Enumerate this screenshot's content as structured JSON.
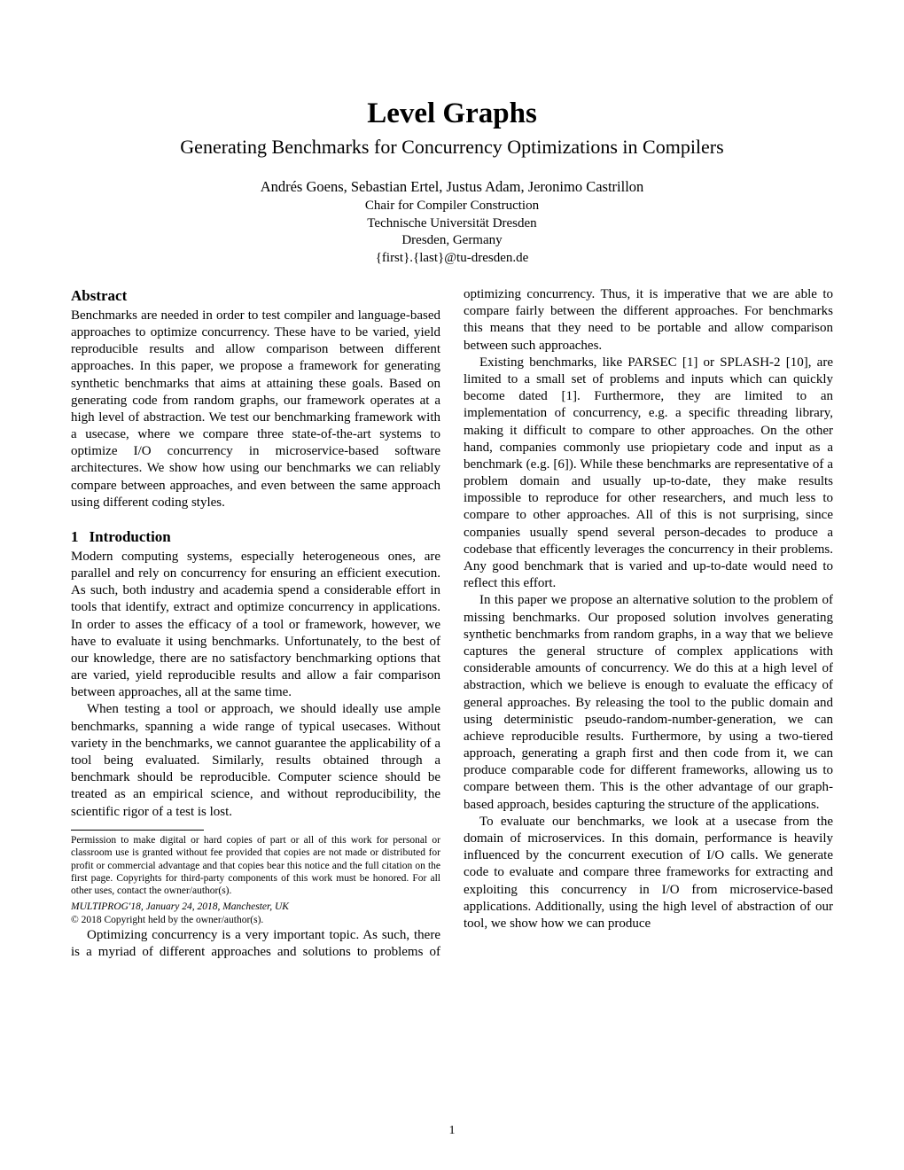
{
  "title": "Level Graphs",
  "subtitle": "Generating Benchmarks for Concurrency Optimizations in Compilers",
  "authors": "Andrés Goens, Sebastian Ertel, Justus Adam, Jeronimo Castrillon",
  "affiliation": {
    "chair": "Chair for Compiler Construction",
    "univ": "Technische Universität Dresden",
    "city": "Dresden, Germany",
    "email": "{first}.{last}@tu-dresden.de"
  },
  "abstract_heading": "Abstract",
  "abstract": "Benchmarks are needed in order to test compiler and language-based approaches to optimize concurrency. These have to be varied, yield reproducible results and allow comparison between different approaches. In this paper, we propose a framework for generating synthetic benchmarks that aims at attaining these goals. Based on generating code from random graphs, our framework operates at a high level of abstraction. We test our benchmarking framework with a usecase, where we compare three state-of-the-art systems to optimize I/O concurrency in microservice-based software architectures. We show how using our benchmarks we can reliably compare between approaches, and even between the same approach using different coding styles.",
  "section1_num": "1",
  "section1_title": "Introduction",
  "intro_p1": "Modern computing systems, especially heterogeneous ones, are parallel and rely on concurrency for ensuring an efficient execution. As such, both industry and academia spend a considerable effort in tools that identify, extract and optimize concurrency in applications. In order to asses the efficacy of a tool or framework, however, we have to evaluate it using benchmarks. Unfortunately, to the best of our knowledge, there are no satisfactory benchmarking options that are varied, yield reproducible results and allow a fair comparison between approaches, all at the same time.",
  "intro_p2": "When testing a tool or approach, we should ideally use ample benchmarks, spanning a wide range of typical usecases. Without variety in the benchmarks, we cannot guarantee the applicability of a tool being evaluated. Similarly, results obtained through a benchmark should be reproducible. Computer science should be treated as an empirical science, and without reproducibility, the scientific rigor of a test is lost.",
  "col2_p1": "Optimizing concurrency is a very important topic. As such, there is a myriad of different approaches and solutions to problems of optimizing concurrency. Thus, it is imperative that we are able to compare fairly between the different approaches. For benchmarks this means that they need to be portable and allow comparison between such approaches.",
  "col2_p2": "Existing benchmarks, like PARSEC [1] or SPLASH-2 [10], are limited to a small set of problems and inputs which can quickly become dated [1]. Furthermore, they are limited to an implementation of concurrency, e.g. a specific threading library, making it difficult to compare to other approaches. On the other hand, companies commonly use priopietary code and input as a benchmark (e.g. [6]). While these benchmarks are representative of a problem domain and usually up-to-date, they make results impossible to reproduce for other researchers, and much less to compare to other approaches. All of this is not surprising, since companies usually spend several person-decades to produce a codebase that efficently leverages the concurrency in their problems. Any good benchmark that is varied and up-to-date would need to reflect this effort.",
  "col2_p3": "In this paper we propose an alternative solution to the problem of missing benchmarks. Our proposed solution involves generating synthetic benchmarks from random graphs, in a way that we believe captures the general structure of complex applications with considerable amounts of concurrency. We do this at a high level of abstraction, which we believe is enough to evaluate the efficacy of general approaches. By releasing the tool to the public domain and using deterministic pseudo-random-number-generation, we can achieve reproducible results. Furthermore, by using a two-tiered approach, generating a graph first and then code from it, we can produce comparable code for different frameworks, allowing us to compare between them. This is the other advantage of our graph-based approach, besides capturing the structure of the applications.",
  "col2_p4": "To evaluate our benchmarks, we look at a usecase from the domain of microservices. In this domain, performance is heavily influenced by the concurrent execution of I/O calls. We generate code to evaluate and compare three frameworks for extracting and exploiting this concurrency in I/O from microservice-based applications. Additionally, using the high level of abstraction of our tool, we show how we can produce",
  "permission": "Permission to make digital or hard copies of part or all of this work for personal or classroom use is granted without fee provided that copies are not made or distributed for profit or commercial advantage and that copies bear this notice and the full citation on the first page. Copyrights for third-party components of this work must be honored. For all other uses, contact the owner/author(s).",
  "venue": "MULTIPROG'18, January 24, 2018, Manchester, UK",
  "copyright": "© 2018 Copyright held by the owner/author(s).",
  "page_num": "1"
}
